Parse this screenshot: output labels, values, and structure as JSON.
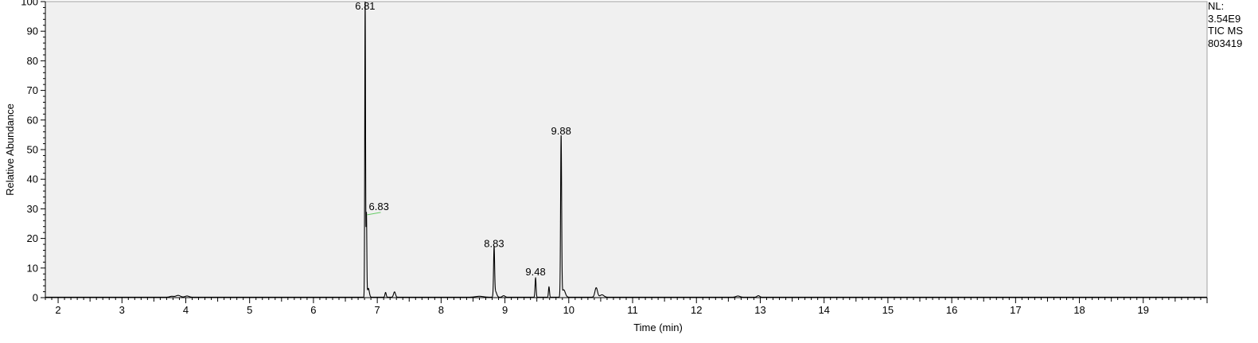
{
  "chart_data": {
    "type": "line",
    "xlabel": "Time (min)",
    "ylabel": "Relative Abundance",
    "xlim": [
      1.8,
      20.0
    ],
    "ylim": [
      0,
      100
    ],
    "x_ticks": [
      "2",
      "3",
      "4",
      "5",
      "6",
      "7",
      "8",
      "9",
      "10",
      "11",
      "12",
      "13",
      "14",
      "15",
      "16",
      "17",
      "18",
      "19"
    ],
    "y_ticks": [
      "0",
      "10",
      "20",
      "30",
      "40",
      "50",
      "60",
      "70",
      "80",
      "90",
      "100"
    ],
    "grid": false,
    "colors": {
      "trace": "#000000",
      "plot_background": "#f0f0f0",
      "label_leader": "#66cc66"
    },
    "series": [
      {
        "peaks": [
          {
            "rt": 3.78,
            "height": 0.3,
            "width": 0.03
          },
          {
            "rt": 3.88,
            "height": 0.6,
            "width": 0.035
          },
          {
            "rt": 4.02,
            "height": 0.4,
            "width": 0.03
          },
          {
            "rt": 6.81,
            "height": 100,
            "width": 0.006
          },
          {
            "rt": 6.83,
            "height": 28,
            "width": 0.006
          },
          {
            "rt": 6.86,
            "height": 3,
            "width": 0.015
          },
          {
            "rt": 7.13,
            "height": 1.6,
            "width": 0.01
          },
          {
            "rt": 7.27,
            "height": 1.8,
            "width": 0.015
          },
          {
            "rt": 8.6,
            "height": 0.3,
            "width": 0.06
          },
          {
            "rt": 8.83,
            "height": 16,
            "width": 0.008
          },
          {
            "rt": 8.85,
            "height": 2,
            "width": 0.02
          },
          {
            "rt": 8.98,
            "height": 0.5,
            "width": 0.02
          },
          {
            "rt": 9.48,
            "height": 6.5,
            "width": 0.008
          },
          {
            "rt": 9.69,
            "height": 3.5,
            "width": 0.008
          },
          {
            "rt": 9.88,
            "height": 54,
            "width": 0.008
          },
          {
            "rt": 9.92,
            "height": 2.5,
            "width": 0.025
          },
          {
            "rt": 10.43,
            "height": 3.2,
            "width": 0.02
          },
          {
            "rt": 10.52,
            "height": 0.8,
            "width": 0.03
          },
          {
            "rt": 12.65,
            "height": 0.4,
            "width": 0.03
          },
          {
            "rt": 12.97,
            "height": 0.5,
            "width": 0.02
          }
        ]
      }
    ],
    "peak_labels": [
      {
        "text": "6.81",
        "x": 6.81,
        "y": 100
      },
      {
        "text": "6.83",
        "x": 6.83,
        "y": 28
      },
      {
        "text": "8.83",
        "x": 8.83,
        "y": 16
      },
      {
        "text": "9.48",
        "x": 9.48,
        "y": 6.5
      },
      {
        "text": "9.88",
        "x": 9.88,
        "y": 54
      }
    ]
  },
  "side_info": {
    "nl_label": "NL:",
    "nl_value": "3.54E9",
    "scan_filter": "TIC  MS",
    "sample_id": "803419"
  }
}
